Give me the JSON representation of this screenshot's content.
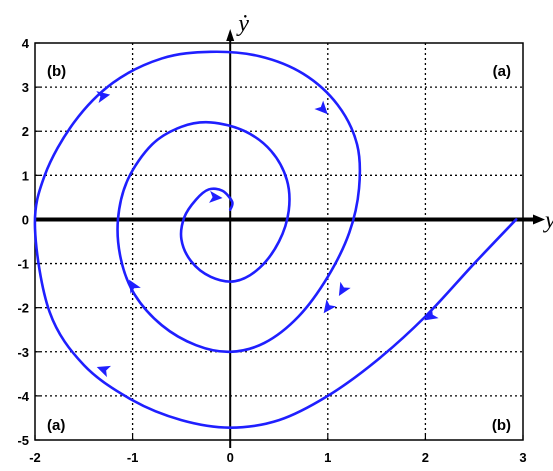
{
  "chart_data": {
    "type": "line",
    "xlim": [
      -2,
      3
    ],
    "ylim": [
      -5,
      4
    ],
    "x_ticks": [
      -2,
      -1,
      0,
      1,
      2,
      3
    ],
    "y_ticks": [
      -5,
      -4,
      -3,
      -2,
      -1,
      0,
      1,
      2,
      3,
      4
    ],
    "x_tick_labels": [
      "-2",
      "-1",
      "0",
      "1",
      "2",
      "3"
    ],
    "y_tick_labels": [
      "-5",
      "-4",
      "-3",
      "-2",
      "-1",
      "0",
      "1",
      "2",
      "3",
      "4"
    ],
    "xlabel": "y",
    "ylabel": "ẏ",
    "grid": true,
    "colors": {
      "trajectory": "#1f1fff",
      "axes": "#000000",
      "grid": "#000000"
    },
    "region_labels": [
      {
        "text": "(b)",
        "position": "top-left"
      },
      {
        "text": "(a)",
        "position": "top-right"
      },
      {
        "text": "(a)",
        "position": "bottom-left"
      },
      {
        "text": "(b)",
        "position": "bottom-right"
      }
    ],
    "series": [
      {
        "style": "spiral-trajectory",
        "x": [
          2.93,
          2.5,
          2.0,
          1.5,
          1.0,
          0.5,
          0.0,
          -0.5,
          -1.0,
          -1.5,
          -1.85,
          -2.0,
          -1.9,
          -1.6,
          -1.2,
          -0.7,
          -0.2,
          0.3,
          0.75,
          1.1,
          1.3,
          1.32,
          1.22,
          1.0,
          0.7,
          0.35,
          0.0,
          -0.35,
          -0.7,
          -0.98,
          -1.12,
          -1.15,
          -1.05,
          -0.8,
          -0.5,
          -0.2,
          0.15,
          0.42,
          0.58,
          0.6,
          0.5,
          0.3,
          0.05,
          -0.2,
          -0.4,
          -0.5,
          -0.47,
          -0.35,
          -0.22,
          -0.08,
          0.02,
          0.0
        ],
        "y": [
          0.0,
          -1.0,
          -2.2,
          -3.2,
          -4.0,
          -4.55,
          -4.72,
          -4.55,
          -4.1,
          -3.3,
          -2.1,
          -0.2,
          1.0,
          2.2,
          3.1,
          3.65,
          3.8,
          3.7,
          3.3,
          2.6,
          1.7,
          0.7,
          -0.3,
          -1.3,
          -2.2,
          -2.8,
          -3.0,
          -2.85,
          -2.4,
          -1.7,
          -0.9,
          0.0,
          0.9,
          1.7,
          2.1,
          2.2,
          2.0,
          1.55,
          0.9,
          0.2,
          -0.5,
          -1.1,
          -1.4,
          -1.3,
          -0.95,
          -0.45,
          0.05,
          0.45,
          0.68,
          0.65,
          0.4,
          0.22
        ]
      }
    ],
    "arrows": [
      {
        "x": -1.3,
        "y": 2.8,
        "direction": [
          0.35,
          0.15
        ]
      },
      {
        "x": 0.95,
        "y": 2.5,
        "direction": [
          0.15,
          -0.35
        ]
      },
      {
        "x": 1.15,
        "y": -1.6,
        "direction": [
          -0.08,
          -0.3
        ]
      },
      {
        "x": 1.0,
        "y": -2.0,
        "direction": [
          -0.1,
          -0.3
        ]
      },
      {
        "x": -1.0,
        "y": -1.5,
        "direction": [
          -0.08,
          0.3
        ]
      },
      {
        "x": -1.3,
        "y": -3.4,
        "direction": [
          -0.25,
          0.2
        ]
      },
      {
        "x": 2.05,
        "y": -2.2,
        "direction": [
          -0.2,
          -0.3
        ]
      },
      {
        "x": -0.15,
        "y": 0.5,
        "direction": [
          0.25,
          -0.05
        ]
      }
    ]
  }
}
